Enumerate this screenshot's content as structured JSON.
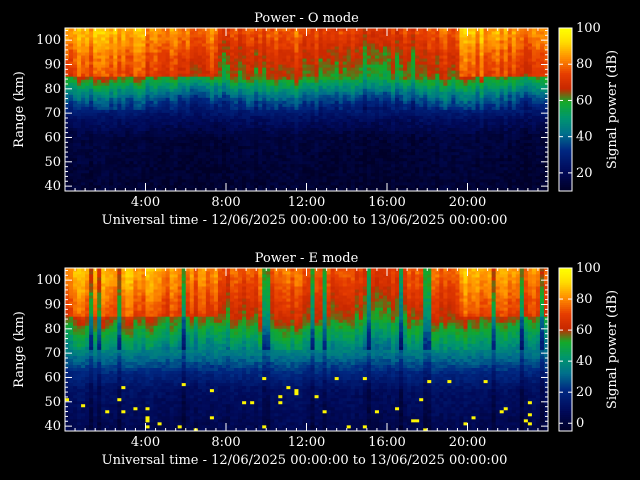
{
  "chart_data": [
    {
      "type": "heatmap",
      "title": "Power - O mode",
      "ylabel": "Range (km)",
      "xlabel": "Universal time - 12/06/2025 00:00:00 to 13/06/2025 00:00:00",
      "x_ticks": [
        "4:00",
        "8:00",
        "12:00",
        "16:00",
        "20:00"
      ],
      "x_tick_hours": [
        4,
        8,
        12,
        16,
        20
      ],
      "xlim_hours": [
        0,
        24
      ],
      "y_ticks": [
        40,
        50,
        60,
        70,
        80,
        90,
        100
      ],
      "ylim": [
        38,
        105
      ],
      "colorbar": {
        "label": "Signal power (dB)",
        "ticks": [
          20,
          40,
          60,
          80,
          100
        ],
        "range": [
          10,
          100
        ]
      },
      "profile_note": "power increases with range; strong echoes (>60 dB) above ~80 km, weak below ~65 km",
      "layers": [
        {
          "range_km": 40,
          "power_db": 12
        },
        {
          "range_km": 60,
          "power_db": 14
        },
        {
          "range_km": 68,
          "power_db": 22
        },
        {
          "range_km": 75,
          "power_db": 35
        },
        {
          "range_km": 80,
          "power_db": 48
        },
        {
          "range_km": 85,
          "power_db": 62
        },
        {
          "range_km": 95,
          "power_db": 68
        },
        {
          "range_km": 103,
          "power_db": 75
        }
      ]
    },
    {
      "type": "heatmap",
      "title": "Power - E mode",
      "ylabel": "Range (km)",
      "xlabel": "Universal time - 12/06/2025 00:00:00 to 13/06/2025 00:00:00",
      "x_ticks": [
        "4:00",
        "8:00",
        "12:00",
        "16:00",
        "20:00"
      ],
      "x_tick_hours": [
        4,
        8,
        12,
        16,
        20
      ],
      "xlim_hours": [
        0,
        24
      ],
      "y_ticks": [
        40,
        50,
        60,
        70,
        80,
        90,
        100
      ],
      "ylim": [
        38,
        105
      ],
      "colorbar": {
        "label": "Signal power (dB)",
        "ticks": [
          0,
          20,
          40,
          60,
          80,
          100
        ],
        "range": [
          -5,
          100
        ]
      },
      "profile_note": "similar layering with sporadic high-power speckles (>90 dB) below 60 km",
      "layers": [
        {
          "range_km": 40,
          "power_db": 5
        },
        {
          "range_km": 55,
          "power_db": 10
        },
        {
          "range_km": 62,
          "power_db": 20
        },
        {
          "range_km": 70,
          "power_db": 35
        },
        {
          "range_km": 78,
          "power_db": 48
        },
        {
          "range_km": 85,
          "power_db": 60
        },
        {
          "range_km": 95,
          "power_db": 68
        },
        {
          "range_km": 103,
          "power_db": 74
        }
      ]
    }
  ]
}
